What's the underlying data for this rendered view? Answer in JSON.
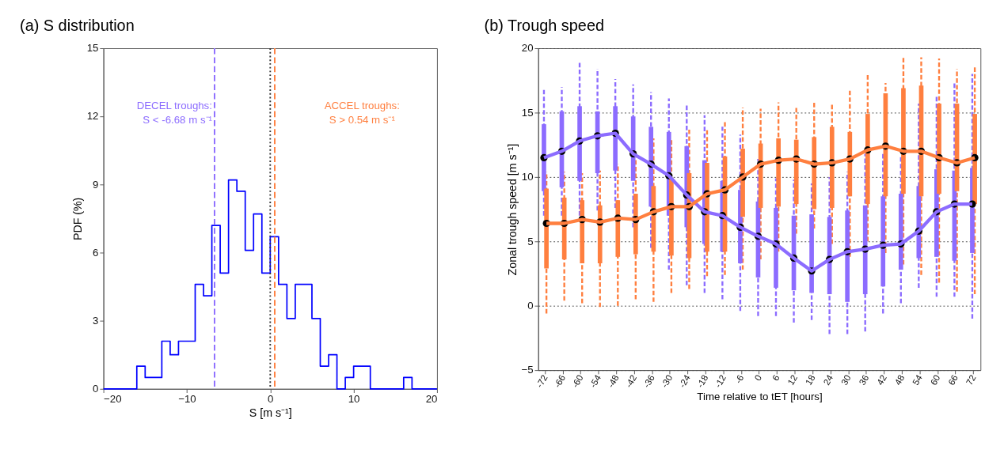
{
  "chart_data": [
    {
      "type": "histogram",
      "title": "(a) S distribution",
      "xlabel": "S [m s⁻¹]",
      "ylabel": "PDF (%)",
      "bins": [
        -20,
        -19,
        -18,
        -17,
        -16,
        -15,
        -14,
        -13,
        -12,
        -11,
        -10,
        -9,
        -8,
        -7,
        -6,
        -5,
        -4,
        -3,
        -2,
        -1,
        0,
        1,
        2,
        3,
        4,
        5,
        6,
        7,
        8,
        9,
        10,
        11,
        12,
        13,
        14,
        15,
        16,
        17,
        18,
        19,
        20
      ],
      "values": [
        0,
        0,
        0,
        0,
        1.0,
        0.5,
        0.5,
        2.1,
        1.5,
        2.1,
        2.1,
        4.6,
        4.1,
        7.2,
        5.1,
        9.2,
        8.7,
        6.1,
        7.7,
        5.1,
        6.7,
        4.6,
        3.1,
        4.6,
        4.6,
        3.1,
        1.0,
        1.5,
        0,
        0.5,
        1.0,
        1.0,
        0,
        0,
        0,
        0,
        0.5,
        0,
        0,
        0
      ],
      "color": "#0000ff",
      "xlim": [
        -20,
        20
      ],
      "xticks": [
        -20,
        -10,
        0,
        10,
        20
      ],
      "ylim": [
        0,
        15
      ],
      "yticks": [
        0,
        3,
        6,
        9,
        12,
        15
      ],
      "grid": false,
      "ref_lines": [
        {
          "axis": "x",
          "value": -6.68,
          "color": "#8c6cff",
          "line_style": "dashed"
        },
        {
          "axis": "x",
          "value": 0.54,
          "color": "#ff7f3f",
          "line_style": "dashed"
        },
        {
          "axis": "x",
          "value": 0,
          "color": "#333333",
          "line_style": "dotted"
        }
      ],
      "annotations": [
        "DECEL troughs:\nS < -6.68 m s⁻¹",
        "ACCEL troughs:\nS >  0.54 m s⁻¹"
      ]
    },
    {
      "type": "box",
      "title": "(b) Trough speed",
      "xlabel": "Time relative to tET [hours]",
      "ylabel": "Zonal trough speed [m s⁻¹]",
      "categories": [
        "-72",
        "-66",
        "-60",
        "-54",
        "-48",
        "-42",
        "-36",
        "-30",
        "-24",
        "-18",
        "-12",
        "-6",
        "0",
        "6",
        "12",
        "18",
        "24",
        "30",
        "36",
        "42",
        "48",
        "54",
        "60",
        "66",
        "72"
      ],
      "ylim": [
        -5,
        20
      ],
      "yticks": [
        -5,
        0,
        5,
        10,
        15,
        20
      ],
      "grid": "y",
      "series": [
        {
          "color": "#8c6cff",
          "boxes": [
            {
              "low": 7.0,
              "q1": 8.9,
              "median": 11.5,
              "q3": 14.1,
              "high": 16.9
            },
            {
              "low": 7.0,
              "q1": 9.2,
              "median": 12.0,
              "q3": 15.1,
              "high": 17.0
            },
            {
              "low": 7.0,
              "q1": 9.7,
              "median": 12.8,
              "q3": 15.5,
              "high": 19.0
            },
            {
              "low": 7.4,
              "q1": 10.3,
              "median": 13.2,
              "q3": 15.1,
              "high": 18.4
            },
            {
              "low": 7.6,
              "q1": 10.5,
              "median": 13.4,
              "q3": 15.5,
              "high": 17.6
            },
            {
              "low": 6.1,
              "q1": 9.7,
              "median": 11.8,
              "q3": 14.7,
              "high": 17.2
            },
            {
              "low": 4.5,
              "q1": 7.7,
              "median": 11.0,
              "q3": 13.9,
              "high": 16.6
            },
            {
              "low": 2.8,
              "q1": 7.0,
              "median": 10.1,
              "q3": 13.5,
              "high": 16.1
            },
            {
              "low": 1.6,
              "q1": 6.1,
              "median": 8.6,
              "q3": 12.4,
              "high": 15.7
            },
            {
              "low": 1.0,
              "q1": 4.8,
              "median": 7.3,
              "q3": 11.3,
              "high": 14.8
            },
            {
              "low": 0.5,
              "q1": 4.2,
              "median": 7.0,
              "q3": 9.7,
              "high": 13.9
            },
            {
              "low": -0.4,
              "q1": 3.3,
              "median": 6.1,
              "q3": 9.0,
              "high": 13.3
            },
            {
              "low": -0.8,
              "q1": 2.2,
              "median": 5.4,
              "q3": 8.1,
              "high": 11.4
            },
            {
              "low": -0.8,
              "q1": 1.4,
              "median": 4.8,
              "q3": 7.6,
              "high": 9.9
            },
            {
              "low": -1.3,
              "q1": 1.2,
              "median": 3.7,
              "q3": 7.0,
              "high": 9.8
            },
            {
              "low": -1.1,
              "q1": 1.0,
              "median": 2.7,
              "q3": 7.1,
              "high": 9.5
            },
            {
              "low": -2.2,
              "q1": 0.9,
              "median": 3.6,
              "q3": 6.9,
              "high": 10.0
            },
            {
              "low": -2.2,
              "q1": 0.3,
              "median": 4.2,
              "q3": 7.4,
              "high": 10.4
            },
            {
              "low": -2.0,
              "q1": 0.9,
              "median": 4.4,
              "q3": 7.8,
              "high": 11.8
            },
            {
              "low": -0.6,
              "q1": 1.5,
              "median": 4.7,
              "q3": 8.5,
              "high": 11.8
            },
            {
              "low": 0.2,
              "q1": 2.8,
              "median": 4.8,
              "q3": 8.7,
              "high": 11.7
            },
            {
              "low": 1.4,
              "q1": 3.7,
              "median": 5.8,
              "q3": 9.3,
              "high": 15.7
            },
            {
              "low": 0.7,
              "q1": 3.8,
              "median": 7.3,
              "q3": 10.6,
              "high": 16.3
            },
            {
              "low": 0.7,
              "q1": 3.5,
              "median": 7.9,
              "q3": 10.5,
              "high": 17.4
            },
            {
              "low": -1.0,
              "q1": 4.1,
              "median": 7.9,
              "q3": 10.7,
              "high": 18.0
            }
          ]
        },
        {
          "color": "#ff7f3f",
          "boxes": [
            {
              "low": -0.6,
              "q1": 2.9,
              "median": 6.4,
              "q3": 9.1,
              "high": 10.4
            },
            {
              "low": 0.4,
              "q1": 3.6,
              "median": 6.4,
              "q3": 8.4,
              "high": 10.4
            },
            {
              "low": 0.2,
              "q1": 3.3,
              "median": 6.7,
              "q3": 8.2,
              "high": 10.3
            },
            {
              "low": -0.1,
              "q1": 3.3,
              "median": 6.5,
              "q3": 7.8,
              "high": 10.5
            },
            {
              "low": 0.0,
              "q1": 3.8,
              "median": 6.8,
              "q3": 8.2,
              "high": 11.0
            },
            {
              "low": 0.5,
              "q1": 4.0,
              "median": 6.7,
              "q3": 8.7,
              "high": 11.5
            },
            {
              "low": 0.3,
              "q1": 4.2,
              "median": 7.3,
              "q3": 9.3,
              "high": 13.0
            },
            {
              "low": 1.0,
              "q1": 3.9,
              "median": 7.7,
              "q3": 9.9,
              "high": 13.0
            },
            {
              "low": 1.3,
              "q1": 3.7,
              "median": 7.7,
              "q3": 10.3,
              "high": 13.7
            },
            {
              "low": 2.3,
              "q1": 4.2,
              "median": 8.7,
              "q3": 11.1,
              "high": 13.7
            },
            {
              "low": 2.4,
              "q1": 4.2,
              "median": 9.0,
              "q3": 11.6,
              "high": 14.3
            },
            {
              "low": 2.8,
              "q1": 6.9,
              "median": 10.0,
              "q3": 12.2,
              "high": 15.4
            },
            {
              "low": 3.6,
              "q1": 7.6,
              "median": 11.0,
              "q3": 12.6,
              "high": 15.3
            },
            {
              "low": 4.2,
              "q1": 7.7,
              "median": 11.3,
              "q3": 13.0,
              "high": 15.8
            },
            {
              "low": 5.6,
              "q1": 7.9,
              "median": 11.4,
              "q3": 12.9,
              "high": 15.5
            },
            {
              "low": 6.0,
              "q1": 7.5,
              "median": 11.0,
              "q3": 13.1,
              "high": 15.8
            },
            {
              "low": 4.8,
              "q1": 7.6,
              "median": 11.1,
              "q3": 13.9,
              "high": 15.8
            },
            {
              "low": 3.8,
              "q1": 8.5,
              "median": 11.4,
              "q3": 13.5,
              "high": 16.8
            },
            {
              "low": 5.0,
              "q1": 7.9,
              "median": 12.1,
              "q3": 14.9,
              "high": 18.0
            },
            {
              "low": 4.1,
              "q1": 8.5,
              "median": 12.4,
              "q3": 16.5,
              "high": 17.3
            },
            {
              "low": 3.2,
              "q1": 8.7,
              "median": 12.0,
              "q3": 16.9,
              "high": 19.4
            },
            {
              "low": 2.4,
              "q1": 8.5,
              "median": 12.0,
              "q3": 17.1,
              "high": 19.3
            },
            {
              "low": 1.8,
              "q1": 8.7,
              "median": 11.5,
              "q3": 15.7,
              "high": 19.2
            },
            {
              "low": 1.1,
              "q1": 8.9,
              "median": 11.1,
              "q3": 15.7,
              "high": 18.4
            },
            {
              "low": 0.9,
              "q1": 7.9,
              "median": 11.5,
              "q3": 14.9,
              "high": 18.6
            }
          ]
        },
        {
          "type": "line",
          "color": "#8c6cff",
          "values": [
            11.5,
            12.0,
            12.8,
            13.2,
            13.4,
            11.8,
            11.0,
            10.1,
            8.6,
            7.3,
            7.0,
            6.1,
            5.4,
            4.8,
            3.7,
            2.7,
            3.6,
            4.2,
            4.4,
            4.7,
            4.8,
            5.8,
            7.3,
            7.9,
            7.9
          ]
        },
        {
          "type": "line",
          "color": "#ff7f3f",
          "values": [
            6.4,
            6.4,
            6.7,
            6.5,
            6.8,
            6.7,
            7.3,
            7.7,
            7.7,
            8.7,
            9.0,
            10.0,
            11.0,
            11.3,
            11.4,
            11.0,
            11.1,
            11.4,
            12.1,
            12.4,
            12.0,
            12.0,
            11.5,
            11.1,
            11.5
          ]
        }
      ]
    }
  ]
}
